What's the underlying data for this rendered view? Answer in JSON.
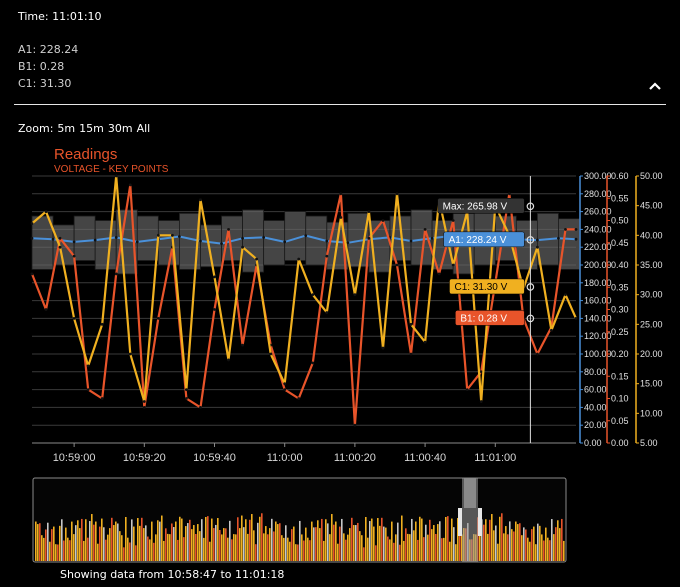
{
  "header": {
    "time_label": "Time: 11:01:10",
    "readings": [
      {
        "label": "A1: 228.24"
      },
      {
        "label": "B1: 0.28"
      },
      {
        "label": "C1: 31.30"
      }
    ]
  },
  "zoom": {
    "label": "Zoom:",
    "options": [
      "5m",
      "15m",
      "30m",
      "All"
    ]
  },
  "footer": {
    "text": "Showing data from 10:58:47 to 11:01:18"
  },
  "colors": {
    "A1": "#4a90d9",
    "B1": "#e8542a",
    "C1": "#f0b020",
    "range": "#6a6a6a",
    "title": "#e8542a",
    "nav_handle": "#9a9a9a"
  },
  "icons": {
    "collapse": "chevron-up-icon"
  },
  "chart_data": {
    "type": "line",
    "title": "Readings",
    "subtitle": "VOLTAGE - KEY POINTS",
    "x_ticks": [
      "10:59:00",
      "10:59:20",
      "10:59:40",
      "11:0:00",
      "11:00:20",
      "11:00:40",
      "11:01:00"
    ],
    "x_tick_times": [
      0,
      20,
      40,
      60,
      80,
      100,
      120
    ],
    "x_range": [
      -12,
      143
    ],
    "y_axes": [
      {
        "id": "A1",
        "ticks": [
          "0.00",
          "20.00",
          "40.00",
          "60.00",
          "80.00",
          "100.00",
          "120.00",
          "140.00",
          "160.00",
          "180.00",
          "200.00",
          "220.00",
          "240.00",
          "260.00",
          "280.00",
          "300.00"
        ],
        "min": 0,
        "max": 300
      },
      {
        "id": "B1",
        "ticks": [
          "0.00",
          "0.05",
          "0.10",
          "0.15",
          "0.20",
          "0.25",
          "0.30",
          "0.35",
          "0.40",
          "0.45",
          "0.50",
          "0.55",
          "0.60"
        ],
        "min": 0,
        "max": 0.6
      },
      {
        "id": "C1",
        "ticks": [
          "5.00",
          "10.00",
          "15.00",
          "20.00",
          "25.00",
          "30.00",
          "35.00",
          "40.00",
          "45.00",
          "50.00"
        ],
        "min": 5,
        "max": 50
      }
    ],
    "crosshair_time": 130,
    "tooltips": [
      {
        "label": "Max: 265.98 V",
        "series": "range",
        "value": 265.98
      },
      {
        "label": "A1: 228.24 V",
        "series": "A1",
        "value": 228.24
      },
      {
        "label": "C1: 31.30 V",
        "series": "C1",
        "value": 31.3
      },
      {
        "label": "B1: 0.28 V",
        "series": "B1",
        "value": 0.28
      }
    ],
    "series": [
      {
        "name": "A1",
        "axis": "A1",
        "x": [
          -12,
          -6,
          0,
          6,
          12,
          18,
          24,
          30,
          36,
          42,
          48,
          54,
          60,
          66,
          72,
          78,
          84,
          90,
          96,
          102,
          108,
          114,
          120,
          126,
          132,
          138,
          143
        ],
        "values": [
          230,
          229,
          226,
          228,
          231,
          226,
          229,
          232,
          227,
          224,
          230,
          231,
          226,
          233,
          227,
          225,
          229,
          231,
          227,
          230,
          233,
          228,
          226,
          229,
          228,
          230,
          229
        ]
      },
      {
        "name": "B1",
        "axis": "B1",
        "x": [
          -12,
          -8,
          -4,
          0,
          4,
          8,
          12,
          16,
          20,
          24,
          28,
          32,
          36,
          40,
          44,
          48,
          52,
          56,
          60,
          64,
          68,
          72,
          76,
          80,
          84,
          88,
          92,
          96,
          100,
          104,
          108,
          112,
          116,
          120,
          124,
          128,
          132,
          136,
          140,
          143
        ],
        "values": [
          0.38,
          0.3,
          0.46,
          0.42,
          0.12,
          0.1,
          0.38,
          0.58,
          0.08,
          0.28,
          0.44,
          0.1,
          0.08,
          0.3,
          0.48,
          0.22,
          0.4,
          0.22,
          0.12,
          0.1,
          0.18,
          0.42,
          0.56,
          0.04,
          0.46,
          0.5,
          0.4,
          0.2,
          0.48,
          0.38,
          0.5,
          0.12,
          0.16,
          0.36,
          0.56,
          0.28,
          0.2,
          0.26,
          0.48,
          0.48
        ]
      },
      {
        "name": "C1",
        "axis": "C1",
        "x": [
          -12,
          -8,
          -4,
          0,
          4,
          8,
          12,
          16,
          20,
          24,
          28,
          32,
          36,
          40,
          44,
          48,
          52,
          56,
          60,
          64,
          68,
          72,
          76,
          80,
          84,
          88,
          92,
          96,
          100,
          104,
          108,
          112,
          116,
          120,
          124,
          128,
          132,
          136,
          140,
          143
        ],
        "values": [
          42,
          44,
          38,
          26,
          18,
          25,
          50,
          20,
          12,
          40,
          40,
          14,
          46,
          33,
          19,
          38,
          36,
          20,
          15,
          36,
          30,
          27,
          43,
          30,
          44,
          21,
          47,
          25,
          22,
          46,
          35,
          44,
          12,
          45,
          40,
          31,
          38,
          24,
          30,
          26
        ]
      }
    ],
    "range_series": {
      "name": "range",
      "axis": "A1",
      "x": [
        -12,
        -6,
        0,
        6,
        12,
        18,
        24,
        30,
        36,
        42,
        48,
        54,
        60,
        66,
        72,
        78,
        84,
        90,
        96,
        102,
        108,
        114,
        120,
        126,
        132,
        138
      ],
      "low": [
        195,
        200,
        205,
        195,
        190,
        205,
        200,
        195,
        198,
        205,
        192,
        200,
        205,
        200,
        195,
        198,
        192,
        205,
        200,
        195,
        190,
        200,
        205,
        195,
        200,
        195
      ],
      "high": [
        255,
        245,
        255,
        250,
        262,
        255,
        250,
        258,
        245,
        255,
        262,
        250,
        260,
        255,
        248,
        258,
        250,
        255,
        262,
        250,
        258,
        262,
        255,
        250,
        258,
        252
      ]
    }
  }
}
